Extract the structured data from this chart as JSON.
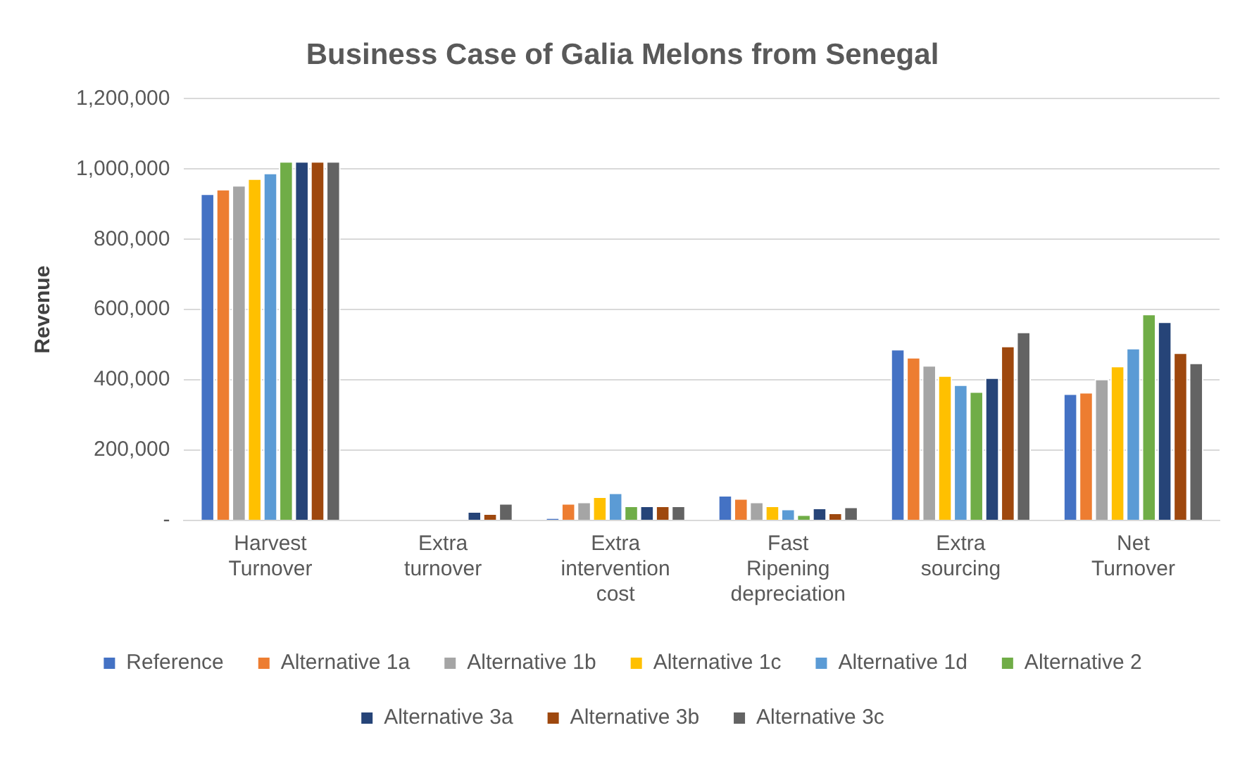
{
  "chart_data": {
    "type": "bar",
    "title": "Business Case of Galia Melons from Senegal",
    "ylabel": "Revenue",
    "categories": [
      "Harvest Turnover",
      "Extra turnover",
      "Extra intervention cost",
      "Fast Ripening depreciation",
      "Extra sourcing",
      "Net Turnover"
    ],
    "series": [
      {
        "name": "Reference",
        "color": "#4472c4",
        "values": [
          930000,
          0,
          7000,
          72000,
          488000,
          361000
        ]
      },
      {
        "name": "Alternative 1a",
        "color": "#ed7d31",
        "values": [
          943000,
          0,
          49000,
          63000,
          465000,
          365000
        ]
      },
      {
        "name": "Alternative 1b",
        "color": "#a5a5a5",
        "values": [
          954000,
          0,
          53000,
          53000,
          442000,
          403000
        ]
      },
      {
        "name": "Alternative 1c",
        "color": "#ffc000",
        "values": [
          973000,
          0,
          68000,
          42000,
          413000,
          440000
        ]
      },
      {
        "name": "Alternative 1d",
        "color": "#5b9bd5",
        "values": [
          989000,
          0,
          79000,
          33000,
          387000,
          491000
        ]
      },
      {
        "name": "Alternative 2",
        "color": "#70ad47",
        "values": [
          1022000,
          0,
          42000,
          17000,
          367000,
          588000
        ]
      },
      {
        "name": "Alternative 3a",
        "color": "#264478",
        "values": [
          1022000,
          26000,
          42000,
          36000,
          407000,
          566000
        ]
      },
      {
        "name": "Alternative 3b",
        "color": "#9e480e",
        "values": [
          1022000,
          20000,
          42000,
          22000,
          497000,
          478000
        ]
      },
      {
        "name": "Alternative 3c",
        "color": "#636363",
        "values": [
          1022000,
          49000,
          42000,
          39000,
          537000,
          449000
        ]
      }
    ],
    "ylim": [
      0,
      1200000
    ],
    "yticks": [
      {
        "value": 0,
        "label": "-"
      },
      {
        "value": 200000,
        "label": "200,000"
      },
      {
        "value": 400000,
        "label": "400,000"
      },
      {
        "value": 600000,
        "label": "600,000"
      },
      {
        "value": 800000,
        "label": "800,000"
      },
      {
        "value": 1000000,
        "label": "1,000,000"
      },
      {
        "value": 1200000,
        "label": "1,200,000"
      }
    ],
    "grid": "y",
    "legend": "bottom"
  }
}
